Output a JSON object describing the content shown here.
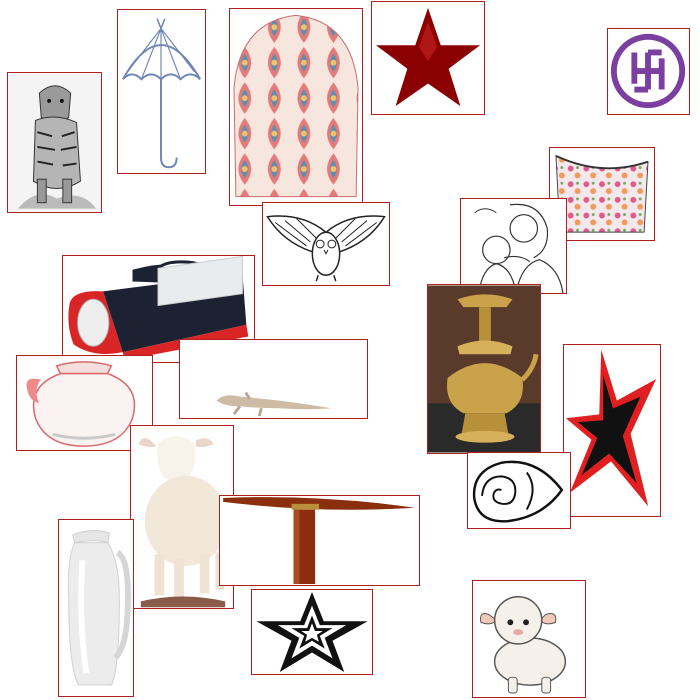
{
  "colors": {
    "tile_border": "#b01e1e",
    "dark_red": "#8b0000",
    "red": "#e02020",
    "gold": "#c9a24a",
    "purple": "#7a3fa0"
  },
  "tiles": [
    {
      "icon": "tiger-icon"
    },
    {
      "icon": "umbrella-icon"
    },
    {
      "icon": "patterned-cloth-icon"
    },
    {
      "icon": "dark-red-star-icon"
    },
    {
      "icon": "swastika-icon"
    },
    {
      "icon": "flower-bag-icon"
    },
    {
      "icon": "owl-icon"
    },
    {
      "icon": "mother-child-icon"
    },
    {
      "icon": "lantern-torch-icon"
    },
    {
      "icon": "brass-lamp-icon"
    },
    {
      "icon": "water-pot-icon"
    },
    {
      "icon": "lizard-icon"
    },
    {
      "icon": "red-black-star-icon"
    },
    {
      "icon": "conch-shell-icon"
    },
    {
      "icon": "sheep-icon"
    },
    {
      "icon": "jug-icon"
    },
    {
      "icon": "pickaxe-icon"
    },
    {
      "icon": "outline-star-icon"
    },
    {
      "icon": "cartoon-lamb-icon"
    }
  ]
}
